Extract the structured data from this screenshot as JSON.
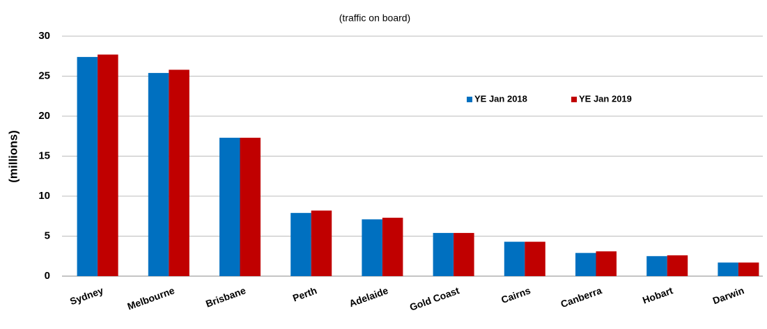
{
  "chart_data": {
    "type": "bar",
    "subtitle": "(traffic on board)",
    "y_label": "(millions)",
    "categories": [
      "Sydney",
      "Melbourne",
      "Brisbane",
      "Perth",
      "Adelaide",
      "Gold Coast",
      "Cairns",
      "Canberra",
      "Hobart",
      "Darwin"
    ],
    "series": [
      {
        "name": "YE Jan 2018",
        "color": "#0070c0",
        "values": [
          27.4,
          25.4,
          17.3,
          7.9,
          7.1,
          5.4,
          4.3,
          2.9,
          2.5,
          1.7
        ]
      },
      {
        "name": "YE Jan 2019",
        "color": "#c00000",
        "values": [
          27.7,
          25.8,
          17.3,
          8.2,
          7.3,
          5.4,
          4.3,
          3.1,
          2.6,
          1.7
        ]
      }
    ],
    "ylim": [
      0,
      30
    ],
    "yticks": [
      0,
      5,
      10,
      15,
      20,
      25,
      30
    ],
    "grid": true
  }
}
